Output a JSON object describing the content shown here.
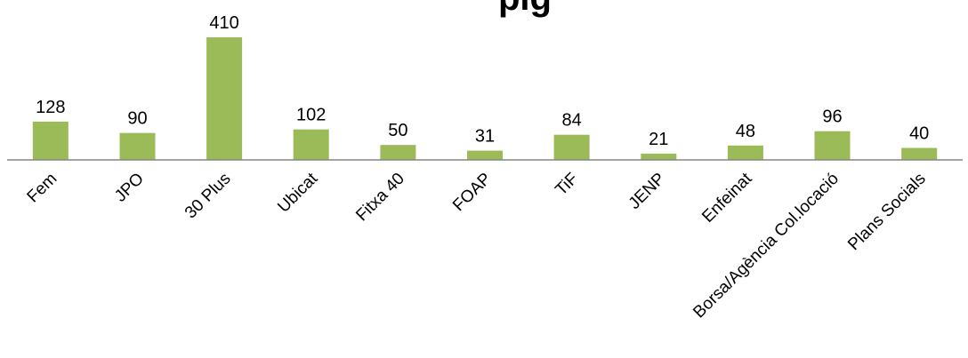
{
  "chart_data": {
    "type": "bar",
    "title": "",
    "title_visible_fragment": "...pig...",
    "xlabel": "",
    "ylabel": "",
    "categories": [
      "Fem",
      "JPO",
      "30 Plus",
      "Ubicat",
      "Fitxa 40",
      "FOAP",
      "TiF",
      "JENP",
      "Enfeinat",
      "Borsa/Agència Col.locació",
      "Plans Socials"
    ],
    "values": [
      128,
      90,
      410,
      102,
      50,
      31,
      84,
      21,
      48,
      96,
      40
    ],
    "ylim": [
      0,
      410
    ],
    "data_labels": true,
    "grid": false,
    "legend": "none",
    "bar_color": "#9BBB59",
    "axis_color": "#868686"
  }
}
